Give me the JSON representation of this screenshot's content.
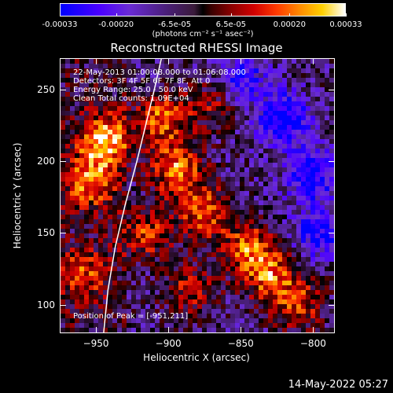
{
  "colorbar": {
    "ticks": [
      "-0.00033",
      "-0.00020",
      "-6.5e-05",
      "6.5e-05",
      "0.00020",
      "0.00033"
    ],
    "tick_values": [
      -0.00033,
      -0.0002,
      -6.5e-05,
      6.5e-05,
      0.0002,
      0.00033
    ],
    "range": [
      -0.00033,
      0.00033
    ],
    "units": "(photons cm⁻² s⁻¹ asec⁻²)"
  },
  "title": "Reconstructed RHESSI Image",
  "annotations": {
    "time_range": "22-May-2013 01:00:08.000 to 01:06:08.000",
    "detectors": "Detectors: 3F 4F 5F 6F 7F 8F, Att 0",
    "energy": "Energy Range: 25.0 - 50.0 keV",
    "clean_total": "Clean     Total counts: 1.09E+04",
    "peak": "Position of Peak = [-951,211]"
  },
  "timestamp": "14-May-2022 05:27",
  "chart_data": {
    "type": "heatmap",
    "title": "Reconstructed RHESSI Image",
    "xlabel": "Heliocentric X (arcsec)",
    "ylabel": "Heliocentric Y (arcsec)",
    "xlim": [
      -975,
      -785
    ],
    "ylim": [
      80,
      272
    ],
    "xticks": [
      -950,
      -900,
      -850,
      -800
    ],
    "yticks": [
      100,
      150,
      200,
      250
    ],
    "xtick_labels": [
      "−950",
      "−900",
      "−850",
      "−800"
    ],
    "ytick_labels": [
      "100",
      "150",
      "200",
      "250"
    ],
    "peak": [
      -951,
      211
    ],
    "limb_curve": [
      [
        -945,
        80
      ],
      [
        -942,
        110
      ],
      [
        -937,
        140
      ],
      [
        -930,
        170
      ],
      [
        -922,
        200
      ],
      [
        -916,
        225
      ],
      [
        -910,
        250
      ],
      [
        -905,
        272
      ]
    ],
    "regions": [
      {
        "x": -945,
        "y": 215,
        "value": 0.00033
      },
      {
        "x": -955,
        "y": 185,
        "value": 0.00025
      },
      {
        "x": -905,
        "y": 230,
        "value": 0.00028
      },
      {
        "x": -895,
        "y": 195,
        "value": 0.0003
      },
      {
        "x": -875,
        "y": 165,
        "value": 0.00027
      },
      {
        "x": -845,
        "y": 140,
        "value": 0.00025
      },
      {
        "x": -830,
        "y": 120,
        "value": 0.00026
      },
      {
        "x": -915,
        "y": 150,
        "value": 0.00022
      },
      {
        "x": -960,
        "y": 120,
        "value": 0.0002
      },
      {
        "x": -870,
        "y": 240,
        "value": 0.00015
      },
      {
        "x": -810,
        "y": 100,
        "value": 0.00022
      },
      {
        "x": -885,
        "y": 110,
        "value": 0.00018
      },
      {
        "x": -820,
        "y": 230,
        "value": -0.0003
      },
      {
        "x": -800,
        "y": 190,
        "value": -0.00025
      },
      {
        "x": -850,
        "y": 260,
        "value": -0.0002
      },
      {
        "x": -795,
        "y": 150,
        "value": -0.00022
      }
    ]
  }
}
